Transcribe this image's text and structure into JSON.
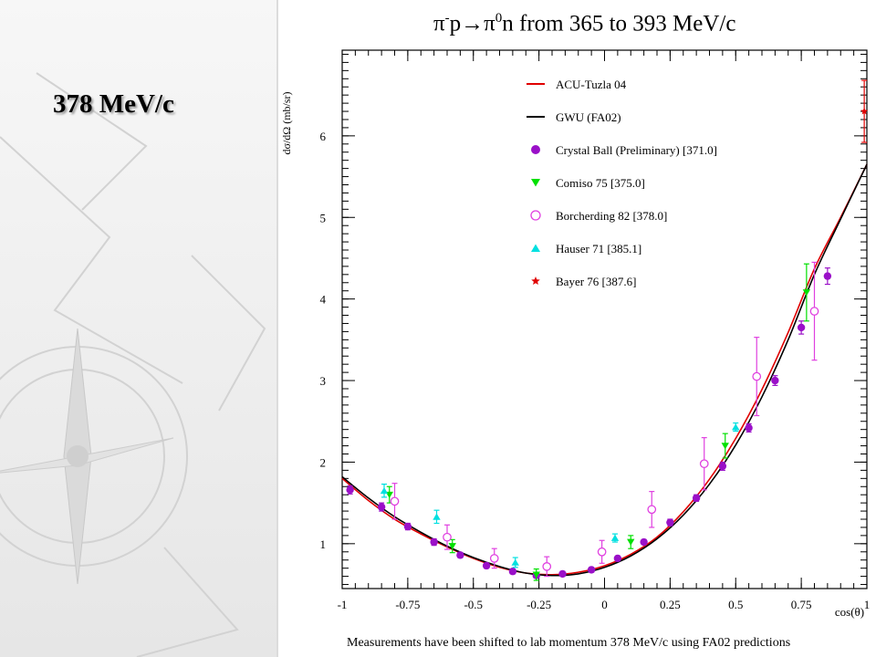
{
  "slide": {
    "title": "378 MeV/c"
  },
  "chart_title": {
    "prefix": "π",
    "sup1": "-",
    "mid": "p→π",
    "sup2": "0",
    "suffix": "n from 365 to 393 MeV/c"
  },
  "footnote": "Measurements have been shifted to lab momentum 378 MeV/c using FA02 predictions",
  "colors": {
    "acu": "#e00000",
    "gwu": "#000000",
    "cb": "#9a10c8",
    "comiso": "#00e000",
    "borcherding": "#e040e0",
    "hauser": "#00e0e0",
    "bayer": "#e00000",
    "axis": "#000000"
  },
  "chart_data": {
    "type": "scatter",
    "title": "π⁻p→π⁰n from 365 to 393 MeV/c",
    "xlabel": "cos(θ)",
    "ylabel": "dσ/dΩ (mb/sr)",
    "xlim": [
      -1,
      1
    ],
    "ylim": [
      0.45,
      7.05
    ],
    "xticks": [
      -1,
      -0.75,
      -0.5,
      -0.25,
      0,
      0.25,
      0.5,
      0.75,
      1
    ],
    "xtick_labels": [
      "-1",
      "-0.75",
      "-0.5",
      "-0.25",
      "0",
      "0.25",
      "0.5",
      "0.75",
      "1"
    ],
    "yticks": [
      1,
      2,
      3,
      4,
      5,
      6
    ],
    "ytick_labels": [
      "1",
      "2",
      "3",
      "4",
      "5",
      "6"
    ],
    "legend_position": "top-center",
    "curves": [
      {
        "name": "ACU-Tuzla 04",
        "color": "#e00000",
        "x": [
          -1,
          -0.9,
          -0.8,
          -0.7,
          -0.6,
          -0.5,
          -0.4,
          -0.3,
          -0.2,
          -0.1,
          0,
          0.1,
          0.2,
          0.3,
          0.4,
          0.5,
          0.6,
          0.7,
          0.8,
          0.9,
          1.0
        ],
        "y": [
          1.8,
          1.53,
          1.3,
          1.12,
          0.96,
          0.82,
          0.71,
          0.64,
          0.62,
          0.65,
          0.73,
          0.87,
          1.08,
          1.39,
          1.79,
          2.29,
          2.89,
          3.59,
          4.37,
          5.0,
          5.65
        ]
      },
      {
        "name": "GWU (FA02)",
        "color": "#000000",
        "x": [
          -1,
          -0.9,
          -0.8,
          -0.7,
          -0.6,
          -0.5,
          -0.4,
          -0.3,
          -0.2,
          -0.1,
          0,
          0.1,
          0.2,
          0.3,
          0.4,
          0.5,
          0.6,
          0.7,
          0.8,
          0.9,
          1.0
        ],
        "y": [
          1.82,
          1.56,
          1.33,
          1.14,
          0.97,
          0.83,
          0.72,
          0.64,
          0.61,
          0.63,
          0.71,
          0.85,
          1.06,
          1.35,
          1.73,
          2.21,
          2.8,
          3.5,
          4.3,
          4.98,
          5.65
        ]
      }
    ],
    "series": [
      {
        "name": "Crystal Ball (Preliminary)",
        "energy": "[371.0]",
        "marker": "circle",
        "color": "#9a10c8",
        "points": [
          [
            -0.97,
            1.66,
            0.05
          ],
          [
            -0.85,
            1.45,
            0.05
          ],
          [
            -0.75,
            1.21,
            0.04
          ],
          [
            -0.65,
            1.02,
            0.04
          ],
          [
            -0.55,
            0.86,
            0.03
          ],
          [
            -0.45,
            0.73,
            0.03
          ],
          [
            -0.35,
            0.66,
            0.03
          ],
          [
            -0.26,
            0.61,
            0.03
          ],
          [
            -0.16,
            0.63,
            0.03
          ],
          [
            -0.05,
            0.68,
            0.03
          ],
          [
            0.05,
            0.82,
            0.03
          ],
          [
            0.15,
            1.02,
            0.03
          ],
          [
            0.25,
            1.26,
            0.04
          ],
          [
            0.35,
            1.56,
            0.04
          ],
          [
            0.45,
            1.95,
            0.05
          ],
          [
            0.55,
            2.42,
            0.05
          ],
          [
            0.65,
            3.0,
            0.06
          ],
          [
            0.75,
            3.65,
            0.08
          ],
          [
            0.85,
            4.28,
            0.1
          ]
        ]
      },
      {
        "name": "Comiso 75",
        "energy": "[375.0]",
        "marker": "triangle-down",
        "color": "#00e000",
        "points": [
          [
            -0.82,
            1.6,
            0.1
          ],
          [
            -0.58,
            0.97,
            0.08
          ],
          [
            -0.26,
            0.62,
            0.07
          ],
          [
            0.1,
            1.02,
            0.08
          ],
          [
            0.46,
            2.2,
            0.15
          ],
          [
            0.77,
            4.08,
            0.35
          ]
        ]
      },
      {
        "name": "Borcherding 82",
        "energy": "[378.0]",
        "marker": "circle-open",
        "color": "#e040e0",
        "points": [
          [
            -0.8,
            1.52,
            0.22
          ],
          [
            -0.6,
            1.08,
            0.15
          ],
          [
            -0.42,
            0.82,
            0.12
          ],
          [
            -0.22,
            0.72,
            0.12
          ],
          [
            -0.01,
            0.9,
            0.14
          ],
          [
            0.18,
            1.42,
            0.22
          ],
          [
            0.38,
            1.98,
            0.32
          ],
          [
            0.58,
            3.05,
            0.48
          ],
          [
            0.8,
            3.85,
            0.6
          ]
        ]
      },
      {
        "name": "Hauser 71",
        "energy": "[385.1]",
        "marker": "triangle-up",
        "color": "#00e0e0",
        "points": [
          [
            -0.84,
            1.65,
            0.08
          ],
          [
            -0.64,
            1.33,
            0.08
          ],
          [
            -0.34,
            0.77,
            0.06
          ],
          [
            0.04,
            1.07,
            0.05
          ],
          [
            0.5,
            2.43,
            0.05
          ]
        ]
      },
      {
        "name": "Bayer 76",
        "energy": "[387.6]",
        "marker": "star",
        "color": "#e00000",
        "points": [
          [
            0.99,
            6.3,
            0.38
          ]
        ]
      }
    ],
    "legend_curves": [
      {
        "name": "ACU-Tuzla 04",
        "color": "#e00000"
      },
      {
        "name": "GWU (FA02)",
        "color": "#000000"
      }
    ],
    "legend_series": [
      {
        "label": "Crystal Ball (Preliminary)  [371.0]",
        "marker": "circle",
        "color": "#9a10c8"
      },
      {
        "label": "Comiso 75  [375.0]",
        "marker": "triangle-down",
        "color": "#00e000"
      },
      {
        "label": "Borcherding 82  [378.0]",
        "marker": "circle-open",
        "color": "#e040e0"
      },
      {
        "label": "Hauser 71  [385.1]",
        "marker": "triangle-up",
        "color": "#00e0e0"
      },
      {
        "label": "Bayer 76  [387.6]",
        "marker": "star",
        "color": "#e00000"
      }
    ]
  }
}
